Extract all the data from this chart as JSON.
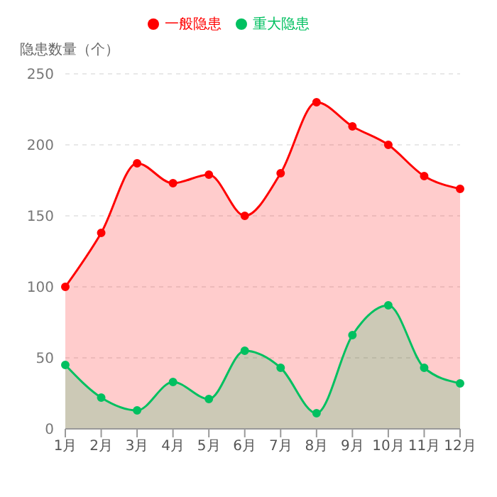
{
  "chart_data": {
    "type": "area",
    "ylabel": "隐患数量（个）",
    "categories": [
      "1月",
      "2月",
      "3月",
      "4月",
      "5月",
      "6月",
      "7月",
      "8月",
      "9月",
      "10月",
      "11月",
      "12月"
    ],
    "series": [
      {
        "name": "一般隐患",
        "color": "#ff0000",
        "values": [
          100,
          138,
          187,
          173,
          179,
          150,
          180,
          230,
          213,
          200,
          178,
          169
        ]
      },
      {
        "name": "重大隐患",
        "color": "#00c060",
        "values": [
          45,
          22,
          13,
          33,
          21,
          55,
          43,
          11,
          66,
          87,
          43,
          32
        ]
      }
    ],
    "ylim": [
      0,
      250
    ],
    "yticks": [
      0,
      50,
      100,
      150,
      200,
      250
    ],
    "grid": "y",
    "legend": "top",
    "marker": "circle",
    "line_style": "solid"
  }
}
